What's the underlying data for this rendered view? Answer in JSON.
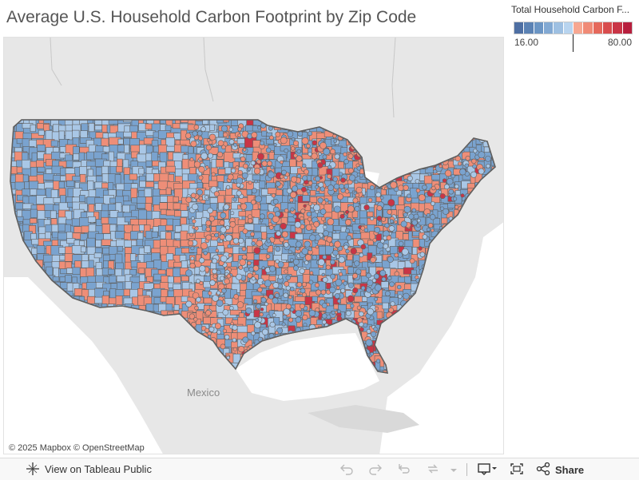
{
  "title": "Average U.S. Household Carbon Footprint by Zip Code",
  "legend": {
    "title": "Total Household Carbon F...",
    "min_label": "16.00",
    "max_label": "80.00",
    "colors": [
      "#4e6fa3",
      "#5b82b4",
      "#6b95c4",
      "#82a9d3",
      "#9ec0e2",
      "#b8d4ef",
      "#f7a791",
      "#f08a76",
      "#e5685b",
      "#d84c4d",
      "#c93546",
      "#b71e3d"
    ]
  },
  "map": {
    "country_label": "Mexico",
    "attribution": "© 2025 Mapbox  © OpenStreetMap",
    "colors": {
      "land": "#e7e7e7",
      "water": "#ffffff",
      "outline": "#5f5f5f",
      "blue": "#7aa3cf",
      "light_blue": "#a9c7e6",
      "salmon": "#ee8e78",
      "red": "#c93546"
    }
  },
  "toolbar": {
    "view_label": "View on Tableau Public",
    "share_label": "Share",
    "icons": [
      "tableau-logo-icon",
      "undo-icon",
      "redo-icon",
      "revert-icon",
      "refresh-icon",
      "dropdown-icon",
      "download-icon",
      "fullscreen-icon",
      "share-icon"
    ]
  }
}
